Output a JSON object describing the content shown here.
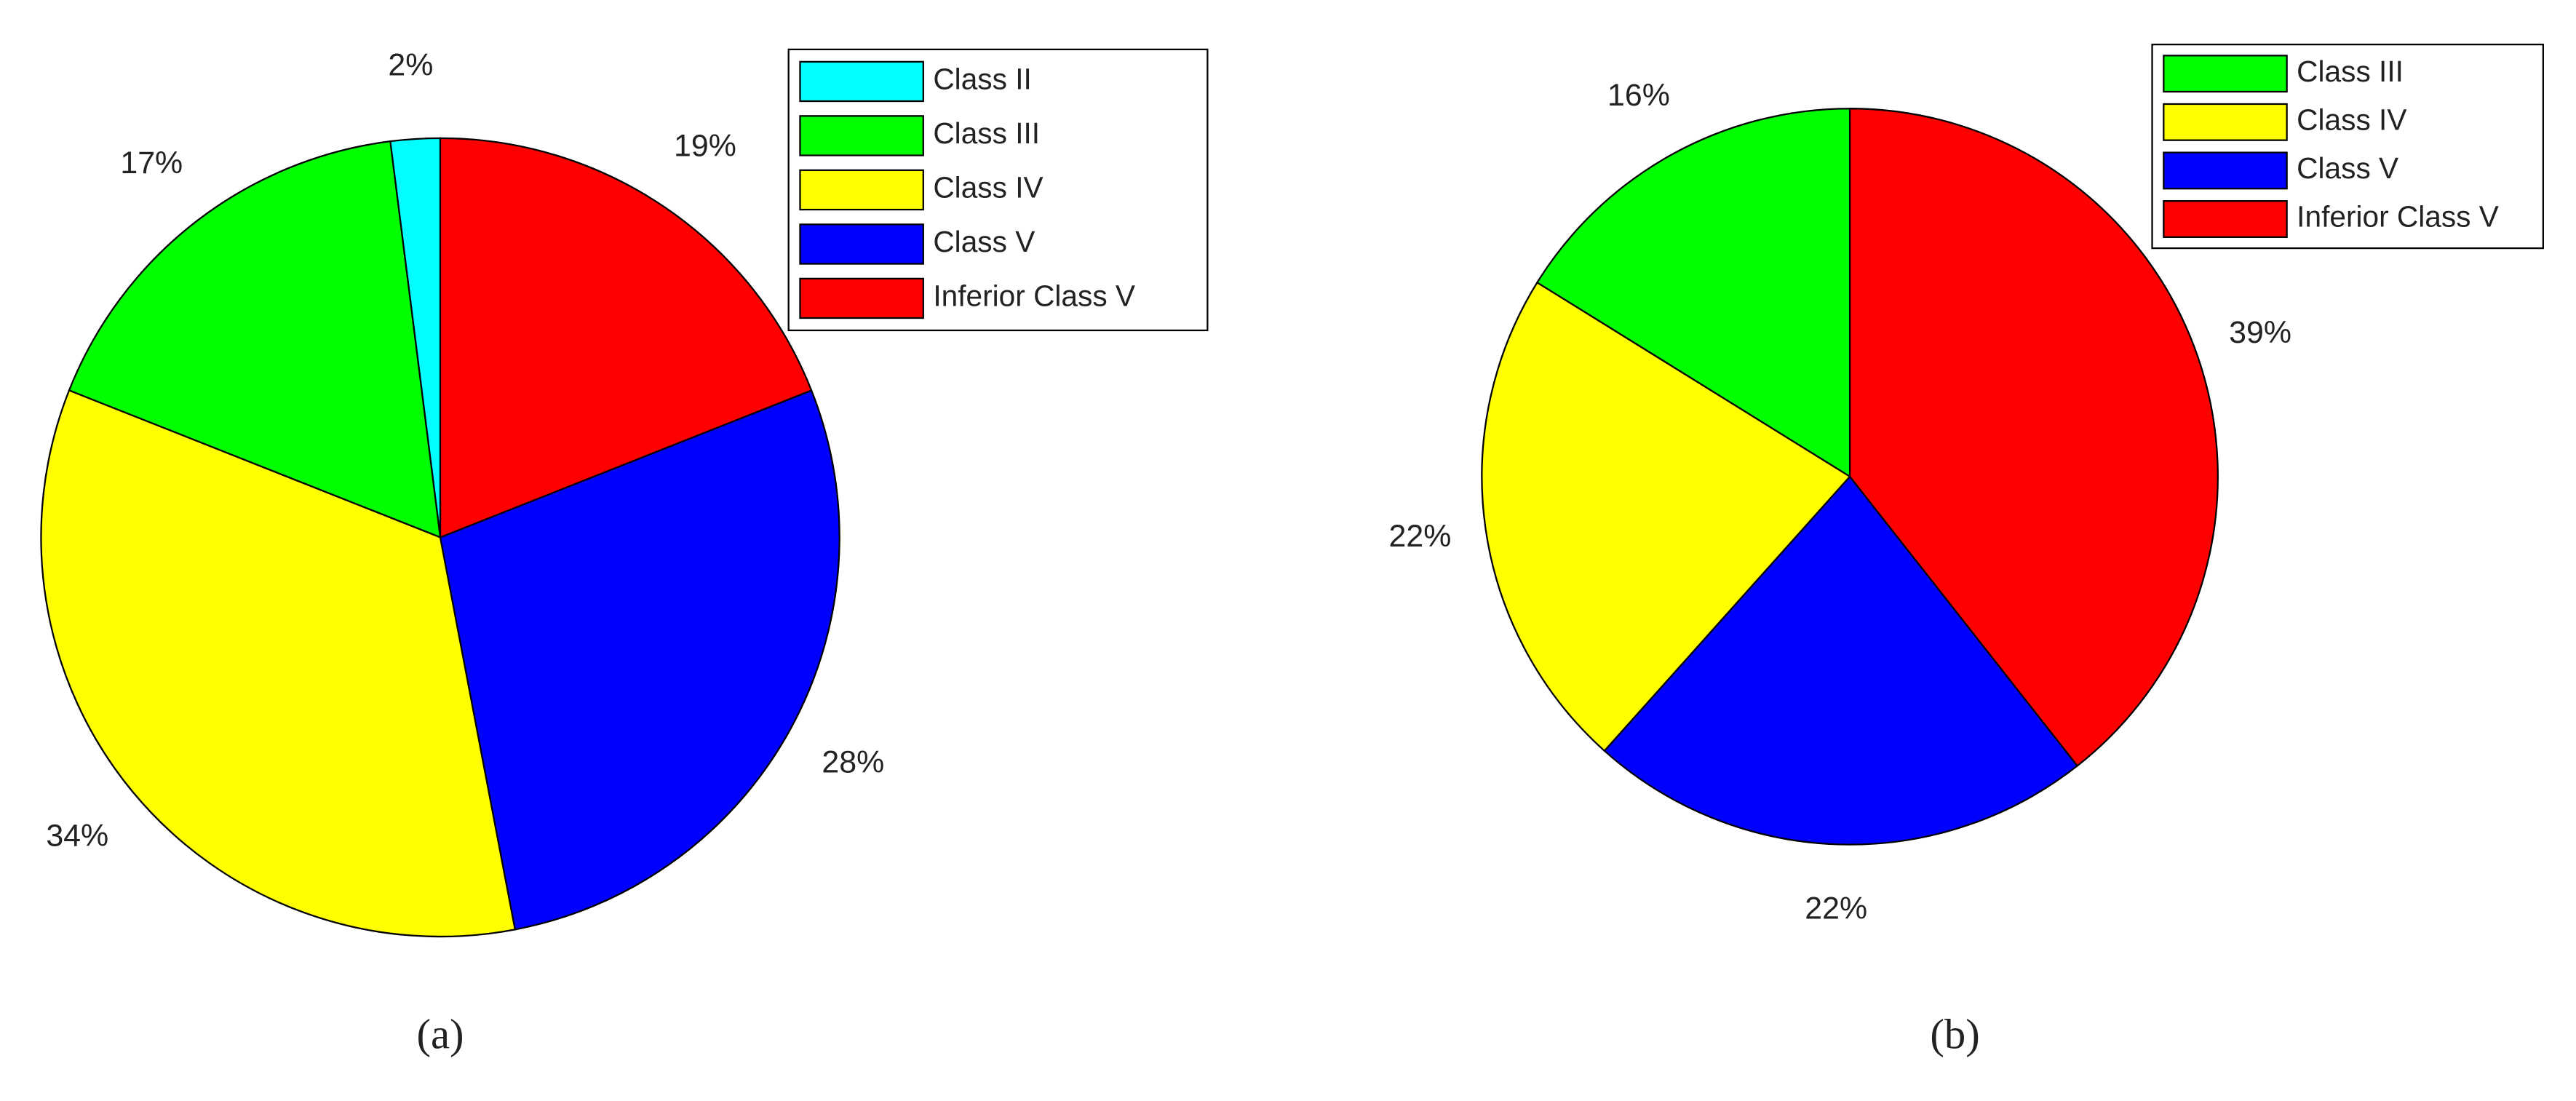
{
  "chart_data": [
    {
      "type": "pie",
      "categories": [
        "Class II",
        "Class III",
        "Class IV",
        "Class V",
        "Inferior Class V"
      ],
      "values": [
        2,
        17,
        34,
        28,
        19
      ],
      "value_labels": [
        "2%",
        "17%",
        "34%",
        "28%",
        "19%"
      ],
      "colors": [
        "#00ffff",
        "#00ff00",
        "#ffff00",
        "#0000ff",
        "#ff0000"
      ],
      "caption": "(a)"
    },
    {
      "type": "pie",
      "categories": [
        "Class III",
        "Class IV",
        "Class V",
        "Inferior Class V"
      ],
      "values": [
        16,
        22,
        22,
        39
      ],
      "value_labels": [
        "16%",
        "22%",
        "22%",
        "39%"
      ],
      "colors": [
        "#00ff00",
        "#ffff00",
        "#0000ff",
        "#ff0000"
      ],
      "caption": "(b)"
    }
  ]
}
